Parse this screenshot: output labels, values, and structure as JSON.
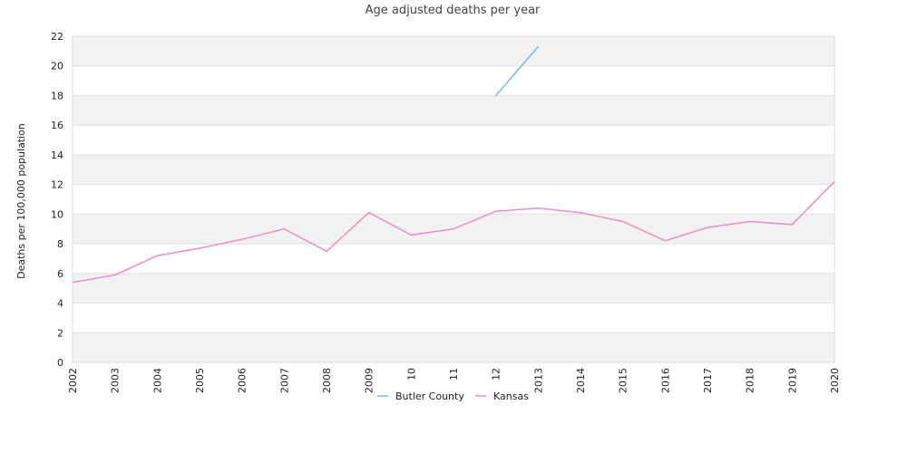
{
  "chart_data": {
    "type": "line",
    "title": "Age adjusted deaths per year",
    "xlabel": "",
    "ylabel": "Deaths per 100,000 population",
    "x": [
      "2002",
      "2003",
      "2004",
      "2005",
      "2006",
      "2007",
      "2008",
      "2009",
      "10",
      "11",
      "12",
      "2013",
      "2014",
      "2015",
      "2016",
      "2017",
      "2018",
      "2019",
      "2020"
    ],
    "ylim": [
      0,
      22
    ],
    "yticks": [
      0,
      2,
      4,
      6,
      8,
      10,
      12,
      14,
      16,
      18,
      20,
      22
    ],
    "grid": "alternating horizontal bands",
    "legend_position": "bottom",
    "series": [
      {
        "name": "Butler County",
        "color": "#7db8e8",
        "values": [
          null,
          null,
          null,
          null,
          null,
          null,
          null,
          null,
          null,
          null,
          18.0,
          21.3,
          null,
          null,
          null,
          null,
          null,
          null,
          null
        ]
      },
      {
        "name": "Kansas",
        "color": "#f08cbf",
        "values": [
          5.4,
          5.9,
          7.2,
          7.7,
          8.3,
          9.0,
          7.5,
          10.1,
          8.6,
          9.0,
          10.2,
          10.4,
          10.1,
          9.5,
          8.2,
          9.1,
          9.5,
          9.3,
          12.2
        ]
      }
    ]
  }
}
